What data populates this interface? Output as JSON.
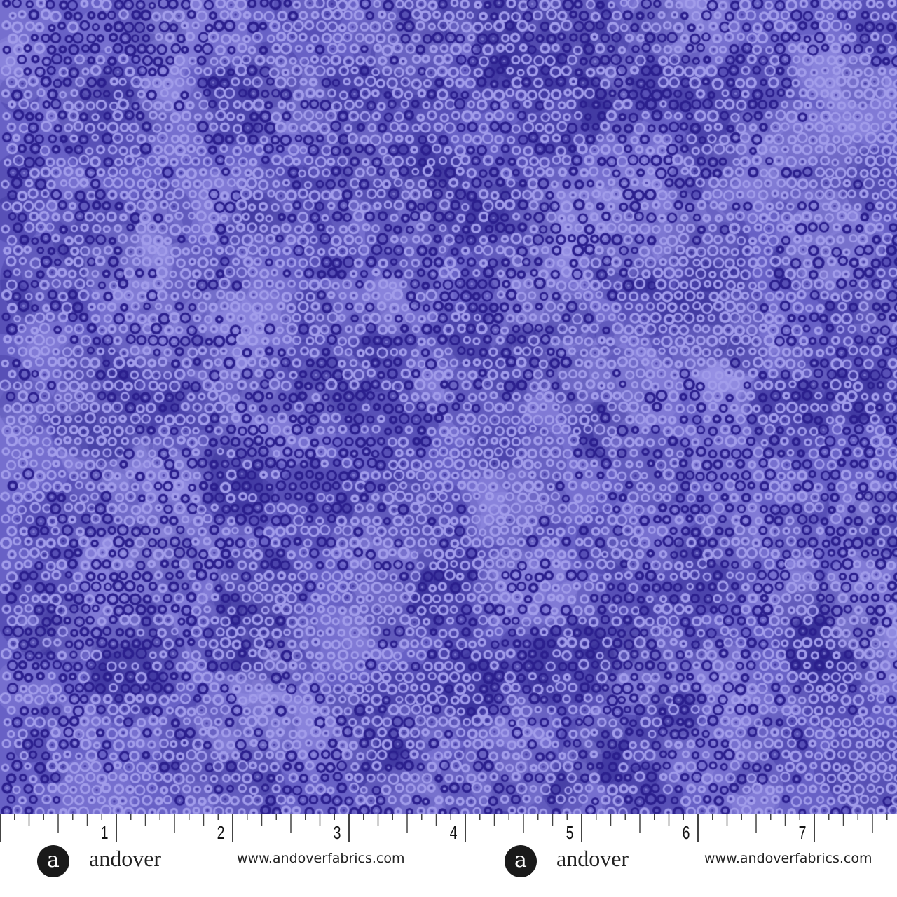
{
  "image": {
    "subject": "fabric-swatch",
    "colors": {
      "base": "#6861c6",
      "dark": "#2b1f8e",
      "light": "#a29deb"
    }
  },
  "ruler": {
    "unit": "inch",
    "numbers": [
      "1",
      "2",
      "3",
      "4",
      "5",
      "6",
      "7"
    ]
  },
  "branding": [
    {
      "logo_letter": "a",
      "name": "andover",
      "url": "www.andoverfabrics.com"
    },
    {
      "logo_letter": "a",
      "name": "andover",
      "url": "www.andoverfabrics.com"
    }
  ]
}
